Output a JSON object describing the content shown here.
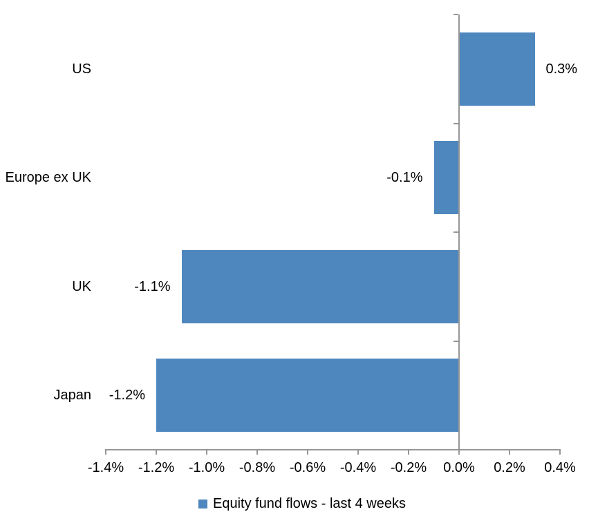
{
  "chart_data": {
    "type": "bar",
    "orientation": "horizontal",
    "title": "",
    "xlabel": "",
    "ylabel": "",
    "categories": [
      "US",
      "Europe ex UK",
      "UK",
      "Japan"
    ],
    "series": [
      {
        "name": "Equity fund flows - last 4 weeks",
        "values": [
          0.3,
          -0.1,
          -1.1,
          -1.2
        ],
        "data_labels": [
          "0.3%",
          "-0.1%",
          "-1.1%",
          "-1.2%"
        ]
      }
    ],
    "xlim": [
      -1.4,
      0.4
    ],
    "x_tick_step": 0.2,
    "x_tick_labels": [
      "-1.4%",
      "-1.2%",
      "-1.0%",
      "-0.8%",
      "-0.6%",
      "-0.4%",
      "-0.2%",
      "0.0%",
      "0.2%",
      "0.4%"
    ],
    "grid": false,
    "legend_position": "bottom",
    "colors": {
      "bar": "#4E87BE",
      "axis": "#969696",
      "text": "#000000",
      "background": "#FFFFFF"
    }
  }
}
